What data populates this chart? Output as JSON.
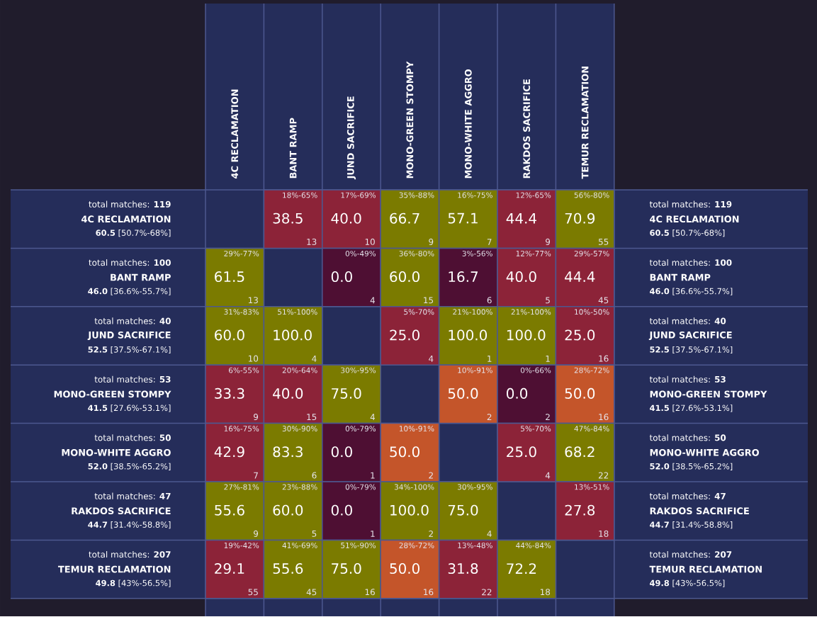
{
  "chart_data": {
    "type": "heatmap",
    "categories": [
      "4C RECLAMATION",
      "BANT RAMP",
      "JUND SACRIFICE",
      "MONO-GREEN STOMPY",
      "MONO-WHITE AGGRO",
      "RAKDOS SACRIFICE",
      "TEMUR RECLAMATION"
    ],
    "y_categories": [
      "4C RECLAMATION",
      "BANT RAMP",
      "JUND SACRIFICE",
      "MONO-GREEN STOMPY",
      "MONO-WHITE AGGRO",
      "RAKDOS SACRIFICE",
      "TEMUR RECLAMATION"
    ],
    "y2_categories": [
      "4C RECLAMATION",
      "BANT RAMP",
      "JUND SACRIFICE",
      "MONO-GREEN STOMPY",
      "MONO-WHITE AGGRO",
      "RAKDOS SACRIFICE",
      "TEMUR RECLAMATION"
    ],
    "cells": [
      [
        null,
        38.5,
        40.0,
        66.7,
        57.1,
        44.4,
        70.9
      ],
      [
        61.5,
        null,
        0.0,
        60.0,
        16.7,
        40.0,
        44.4
      ],
      [
        60.0,
        100.0,
        null,
        25.0,
        100.0,
        100.0,
        25.0
      ],
      [
        33.3,
        40.0,
        75.0,
        null,
        50.0,
        0.0,
        50.0
      ],
      [
        42.9,
        83.3,
        0.0,
        50.0,
        null,
        25.0,
        68.2
      ],
      [
        55.6,
        60.0,
        0.0,
        100.0,
        75.0,
        null,
        27.8
      ],
      [
        29.1,
        55.6,
        75.0,
        50.0,
        31.8,
        72.2,
        null
      ]
    ],
    "cell_labels": [
      [
        null,
        "38.5",
        "40.0",
        "66.7",
        "57.1",
        "44.4",
        "70.9"
      ],
      [
        "61.5",
        null,
        "0.0",
        "60.0",
        "16.7",
        "40.0",
        "44.4"
      ],
      [
        "60.0",
        "100.0",
        null,
        "25.0",
        "100.0",
        "100.0",
        "25.0"
      ],
      [
        "33.3",
        "40.0",
        "75.0",
        null,
        "50.0",
        "0.0",
        "50.0"
      ],
      [
        "42.9",
        "83.3",
        "0.0",
        "50.0",
        null,
        "25.0",
        "68.2"
      ],
      [
        "55.6",
        "60.0",
        "0.0",
        "100.0",
        "75.0",
        null,
        "27.8"
      ],
      [
        "29.1",
        "55.6",
        "75.0",
        "50.0",
        "31.8",
        "72.2",
        null
      ]
    ],
    "annotations": [
      "total matches: **119**",
      "**60.5** [50.7%-68%]",
      "total matches: **100**",
      "**46.0** [36.6%-55.7%]",
      "total matches: **40**",
      "**52.5** [37.5%-67.1%]",
      "total matches: **53**",
      "**41.5** [27.6%-53.1%]",
      "total matches: **50**",
      "**52.0** [38.5%-65.2%]",
      "total matches: **47**",
      "**44.7** [31.4%-58.8%]",
      "total matches: **207**",
      "**49.8** [43%-56.5%]",
      "18%-65%",
      "13",
      "17%-69%",
      "10",
      "35%-88%",
      "9",
      "16%-75%",
      "7",
      "12%-65%",
      "9",
      "56%-80%",
      "55",
      "29%-77%",
      "13",
      "0%-49%",
      "4",
      "36%-80%",
      "15",
      "3%-56%",
      "6",
      "12%-77%",
      "5",
      "29%-57%",
      "45",
      "31%-83%",
      "10",
      "51%-100%",
      "4",
      "5%-70%",
      "4",
      "21%-100%",
      "1",
      "21%-100%",
      "1",
      "10%-50%",
      "16",
      "6%-55%",
      "9",
      "20%-64%",
      "15",
      "30%-95%",
      "4",
      "10%-91%",
      "2",
      "0%-66%",
      "2",
      "28%-72%",
      "16",
      "16%-75%",
      "7",
      "30%-90%",
      "6",
      "0%-79%",
      "1",
      "10%-91%",
      "2",
      "5%-70%",
      "4",
      "47%-84%",
      "22",
      "27%-81%",
      "9",
      "23%-88%",
      "5",
      "0%-79%",
      "1",
      "34%-100%",
      "2",
      "30%-95%",
      "4",
      "13%-51%",
      "18",
      "19%-42%",
      "55",
      "41%-69%",
      "45",
      "51%-90%",
      "16",
      "28%-72%",
      "16",
      "13%-48%",
      "22",
      "44%-84%",
      "18"
    ]
  }
}
